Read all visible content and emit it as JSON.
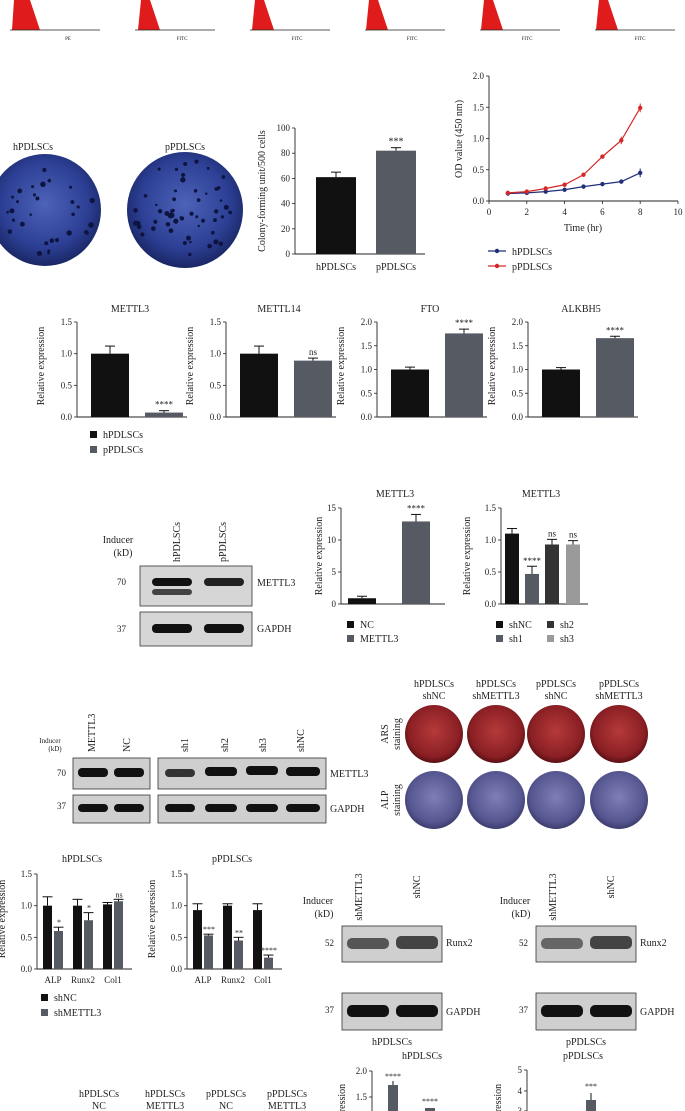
{
  "flow_row": {
    "xlabels": [
      "PE",
      "FITC",
      "FITC",
      "FITC",
      "FITC",
      "FITC"
    ]
  },
  "colony": {
    "plate_labels": [
      "hPDLSCs",
      "pPDLSCs"
    ],
    "bar_ylabel": "Colony-forming unit/500 cells",
    "categories": [
      "hPDLSCs",
      "pPDLSCs"
    ],
    "values": [
      61,
      82
    ],
    "sig": "***",
    "yticks": [
      "0",
      "20",
      "40",
      "60",
      "80",
      "100"
    ]
  },
  "growth": {
    "ylabel": "OD value (450 nm)",
    "xlabel": "Time (hr)",
    "xticks": [
      "0",
      "2",
      "4",
      "6",
      "8",
      "10"
    ],
    "yticks": [
      "0.0",
      "0.5",
      "1.0",
      "1.5",
      "2.0"
    ],
    "legend": [
      "hPDLSCs",
      "pPDLSCs"
    ]
  },
  "expr_panels": [
    {
      "title": "METTL3",
      "sig": "****",
      "yticks": [
        "0.0",
        "0.5",
        "1.0",
        "1.5"
      ]
    },
    {
      "title": "METTL14",
      "sig": "ns",
      "yticks": [
        "0.0",
        "0.5",
        "1.0",
        "1.5"
      ]
    },
    {
      "title": "FTO",
      "sig": "****",
      "yticks": [
        "0.0",
        "0.5",
        "1.0",
        "1.5",
        "2.0"
      ]
    },
    {
      "title": "ALKBH5",
      "sig": "****",
      "yticks": [
        "0.0",
        "0.5",
        "1.0",
        "1.5",
        "2.0"
      ]
    }
  ],
  "expr_ylabel": "Relative expression",
  "expr_legend": [
    "hPDLSCs",
    "pPDLSCs"
  ],
  "wb1": {
    "inducer": "Inducer",
    "kd": "(kD)",
    "lanes": [
      "hPDLSCs",
      "pPDLSCs"
    ],
    "marks": [
      "70",
      "37"
    ],
    "bands": [
      "METTL3",
      "GAPDH"
    ]
  },
  "oe": {
    "title": "METTL3",
    "sig": "****",
    "yticks": [
      "0",
      "5",
      "10",
      "15"
    ],
    "legend": [
      "NC",
      "METTL3"
    ]
  },
  "kd": {
    "title": "METTL3",
    "sigs": [
      "****",
      "ns",
      "ns"
    ],
    "yticks": [
      "0.0",
      "0.5",
      "1.0",
      "1.5"
    ],
    "legend": [
      "shNC",
      "sh2",
      "sh1",
      "sh3"
    ]
  },
  "wb2": {
    "inducer": "Inducer",
    "kd": "(kD)",
    "lanes_a": [
      "METTL3",
      "NC"
    ],
    "lanes_b": [
      "sh1",
      "sh2",
      "sh3",
      "shNC"
    ],
    "marks": [
      "70",
      "37"
    ],
    "bands": [
      "METTL3",
      "GAPDH"
    ]
  },
  "stain": {
    "cols": [
      [
        "hPDLSCs",
        "shNC"
      ],
      [
        "hPDLSCs",
        "shMETTL3"
      ],
      [
        "pPDLSCs",
        "shNC"
      ],
      [
        "pPDLSCs",
        "shMETTL3"
      ]
    ],
    "rows": [
      [
        "ARS",
        "staining"
      ],
      [
        "ALP",
        "staining"
      ]
    ]
  },
  "osteo": {
    "titles": [
      "hPDLSCs",
      "pPDLSCs"
    ],
    "categories": [
      "ALP",
      "Runx2",
      "Col1"
    ],
    "sigs_h": [
      "*",
      "*",
      "ns"
    ],
    "sigs_p": [
      "***",
      "**",
      "****"
    ],
    "yticks": [
      "0.0",
      "0.5",
      "1.0",
      "1.5"
    ],
    "legend": [
      "shNC",
      "shMETTL3"
    ]
  },
  "wb3": {
    "inducer": "Inducer",
    "kd": "(kD)",
    "lanes": [
      "shMETTL3",
      "shNC"
    ],
    "marks": [
      "52",
      "37"
    ],
    "bands": [
      "Runx2",
      "GAPDH"
    ],
    "captions": [
      "hPDLSCs",
      "pPDLSCs"
    ]
  },
  "bottom": {
    "cols": [
      [
        "hPDLSCs",
        "NC"
      ],
      [
        "hPDLSCs",
        "METTL3"
      ],
      [
        "pPDLSCs",
        "NC"
      ],
      [
        "pPDLSCs",
        "METTL3"
      ]
    ],
    "titles": [
      "hPDLSCs",
      "pPDLSCs"
    ],
    "yticks_h": [
      "1.5",
      "2.0"
    ],
    "yticks_p": [
      "3",
      "4",
      "5"
    ],
    "sigs_h": [
      "****",
      "****"
    ],
    "sig_p": "***",
    "ylabel_partial": "ression"
  },
  "colors": {
    "black": "#111111",
    "grey": "#555a63",
    "red": "#d62728",
    "navy": "#1f2f7a",
    "plate": "#2a3d8f"
  }
}
